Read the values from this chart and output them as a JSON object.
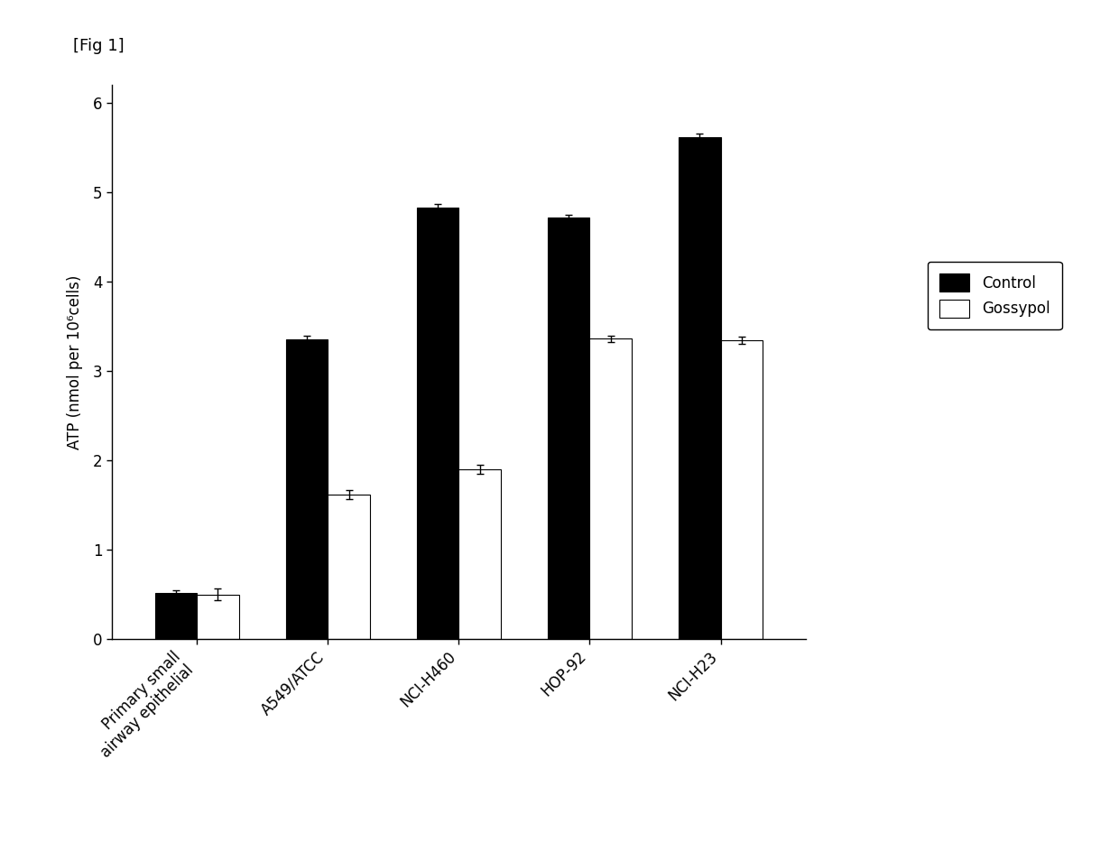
{
  "categories": [
    "Primary small\nairway epithelial",
    "A549/ATCC",
    "NCI-H460",
    "HOP-92",
    "NCI-H23"
  ],
  "control_values": [
    0.52,
    3.35,
    4.83,
    4.72,
    5.62
  ],
  "gossypol_values": [
    0.5,
    1.62,
    1.9,
    3.36,
    3.34
  ],
  "control_errors": [
    0.03,
    0.04,
    0.04,
    0.03,
    0.04
  ],
  "gossypol_errors": [
    0.07,
    0.05,
    0.05,
    0.04,
    0.04
  ],
  "control_color": "#000000",
  "gossypol_color": "#ffffff",
  "ylabel": "ATP (nmol per 10⁶cells)",
  "ylim": [
    0,
    6.2
  ],
  "yticks": [
    0,
    1,
    2,
    3,
    4,
    5,
    6
  ],
  "bar_width": 0.32,
  "legend_labels": [
    "Control",
    "Gossypol"
  ],
  "fig_label": "[Fig 1]",
  "background_color": "#ffffff",
  "edge_color": "#000000"
}
